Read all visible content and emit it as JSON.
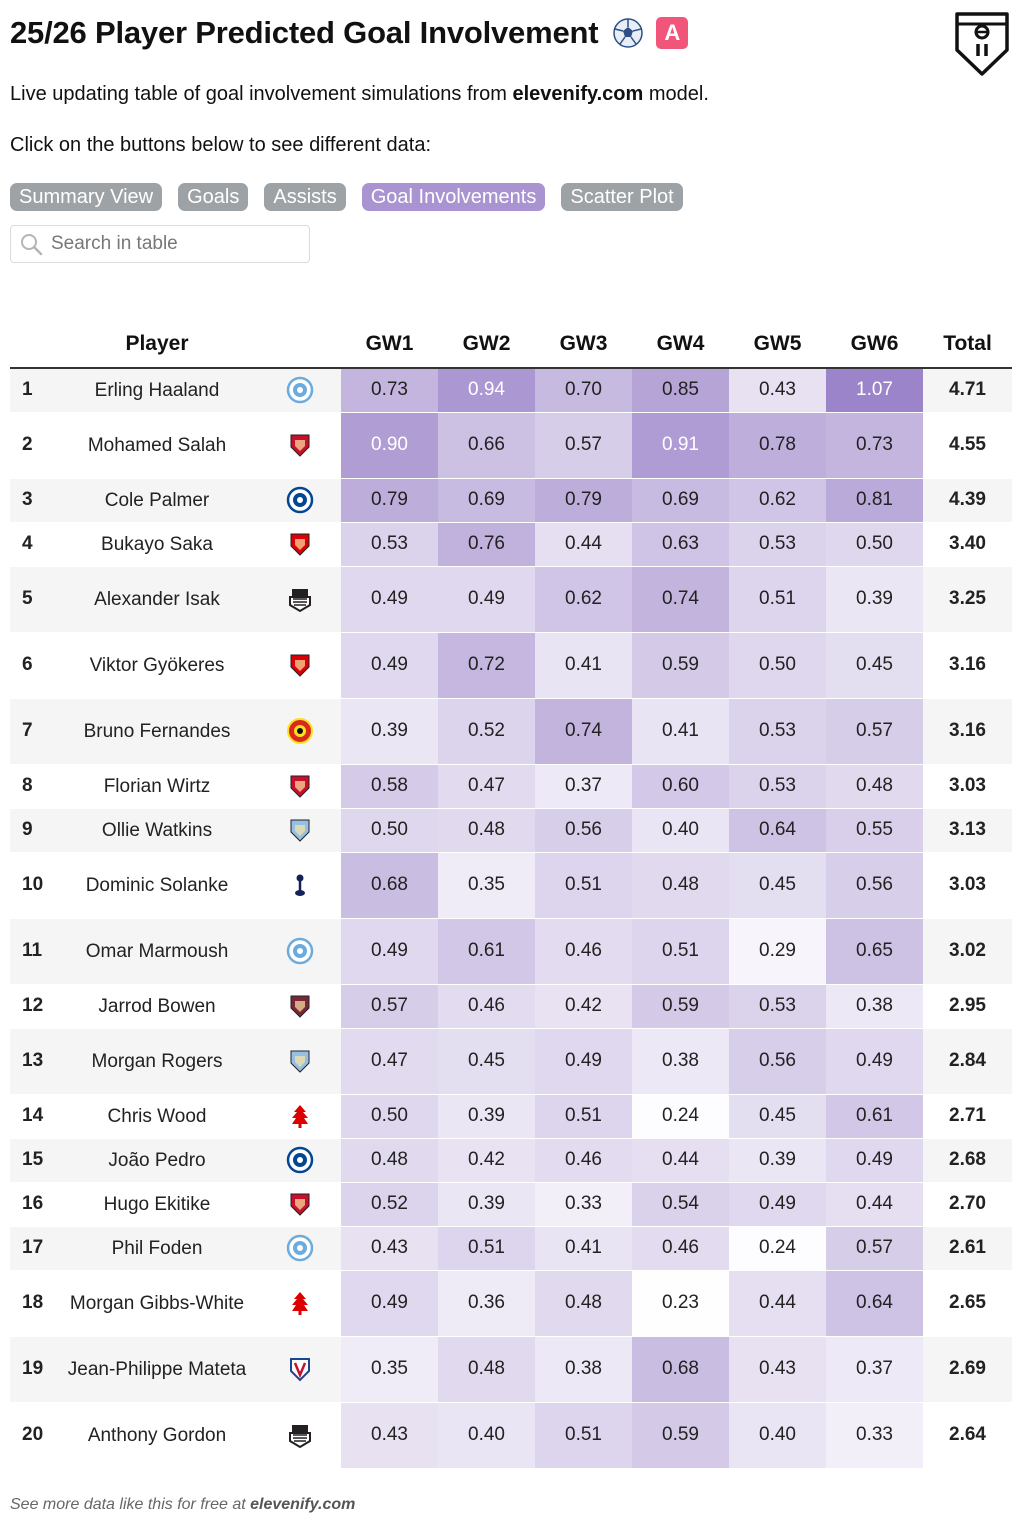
{
  "header": {
    "title": "25/26 Player Predicted Goal Involvement",
    "emoji_a": "A",
    "subtitle_prefix": "Live updating table of goal involvement simulations from ",
    "subtitle_link": "elevenify.com",
    "subtitle_suffix": " model.",
    "instructions": "Click on the buttons below to see different data:"
  },
  "buttons": [
    {
      "label": "Summary View",
      "active": false
    },
    {
      "label": "Goals",
      "active": false
    },
    {
      "label": "Assists",
      "active": false
    },
    {
      "label": "Goal Involvements",
      "active": true
    },
    {
      "label": "Scatter Plot",
      "active": false
    }
  ],
  "search": {
    "placeholder": "Search in table",
    "value": ""
  },
  "table": {
    "columns": [
      "",
      "Player",
      "",
      "GW1",
      "GW2",
      "GW3",
      "GW4",
      "GW5",
      "GW6",
      "Total"
    ],
    "rows": [
      {
        "rank": "1",
        "player": "Erling Haaland",
        "club": "man-city",
        "gw": [
          "0.73",
          "0.94",
          "0.70",
          "0.85",
          "0.43",
          "1.07"
        ],
        "total": "4.71"
      },
      {
        "rank": "2",
        "player": "Mohamed Salah",
        "club": "liverpool",
        "gw": [
          "0.90",
          "0.66",
          "0.57",
          "0.91",
          "0.78",
          "0.73"
        ],
        "total": "4.55"
      },
      {
        "rank": "3",
        "player": "Cole Palmer",
        "club": "chelsea",
        "gw": [
          "0.79",
          "0.69",
          "0.79",
          "0.69",
          "0.62",
          "0.81"
        ],
        "total": "4.39"
      },
      {
        "rank": "4",
        "player": "Bukayo Saka",
        "club": "arsenal",
        "gw": [
          "0.53",
          "0.76",
          "0.44",
          "0.63",
          "0.53",
          "0.50"
        ],
        "total": "3.40"
      },
      {
        "rank": "5",
        "player": "Alexander Isak",
        "club": "newcastle",
        "gw": [
          "0.49",
          "0.49",
          "0.62",
          "0.74",
          "0.51",
          "0.39"
        ],
        "total": "3.25"
      },
      {
        "rank": "6",
        "player": "Viktor Gyökeres",
        "club": "arsenal",
        "gw": [
          "0.49",
          "0.72",
          "0.41",
          "0.59",
          "0.50",
          "0.45"
        ],
        "total": "3.16"
      },
      {
        "rank": "7",
        "player": "Bruno Fernandes",
        "club": "man-utd",
        "gw": [
          "0.39",
          "0.52",
          "0.74",
          "0.41",
          "0.53",
          "0.57"
        ],
        "total": "3.16"
      },
      {
        "rank": "8",
        "player": "Florian Wirtz",
        "club": "liverpool",
        "gw": [
          "0.58",
          "0.47",
          "0.37",
          "0.60",
          "0.53",
          "0.48"
        ],
        "total": "3.03"
      },
      {
        "rank": "9",
        "player": "Ollie Watkins",
        "club": "aston-villa",
        "gw": [
          "0.50",
          "0.48",
          "0.56",
          "0.40",
          "0.64",
          "0.55"
        ],
        "total": "3.13"
      },
      {
        "rank": "10",
        "player": "Dominic Solanke",
        "club": "tottenham",
        "gw": [
          "0.68",
          "0.35",
          "0.51",
          "0.48",
          "0.45",
          "0.56"
        ],
        "total": "3.03"
      },
      {
        "rank": "11",
        "player": "Omar Marmoush",
        "club": "man-city",
        "gw": [
          "0.49",
          "0.61",
          "0.46",
          "0.51",
          "0.29",
          "0.65"
        ],
        "total": "3.02"
      },
      {
        "rank": "12",
        "player": "Jarrod Bowen",
        "club": "west-ham",
        "gw": [
          "0.57",
          "0.46",
          "0.42",
          "0.59",
          "0.53",
          "0.38"
        ],
        "total": "2.95"
      },
      {
        "rank": "13",
        "player": "Morgan Rogers",
        "club": "aston-villa",
        "gw": [
          "0.47",
          "0.45",
          "0.49",
          "0.38",
          "0.56",
          "0.49"
        ],
        "total": "2.84"
      },
      {
        "rank": "14",
        "player": "Chris Wood",
        "club": "forest",
        "gw": [
          "0.50",
          "0.39",
          "0.51",
          "0.24",
          "0.45",
          "0.61"
        ],
        "total": "2.71"
      },
      {
        "rank": "15",
        "player": "João Pedro",
        "club": "chelsea",
        "gw": [
          "0.48",
          "0.42",
          "0.46",
          "0.44",
          "0.39",
          "0.49"
        ],
        "total": "2.68"
      },
      {
        "rank": "16",
        "player": "Hugo Ekitike",
        "club": "liverpool",
        "gw": [
          "0.52",
          "0.39",
          "0.33",
          "0.54",
          "0.49",
          "0.44"
        ],
        "total": "2.70"
      },
      {
        "rank": "17",
        "player": "Phil Foden",
        "club": "man-city",
        "gw": [
          "0.43",
          "0.51",
          "0.41",
          "0.46",
          "0.24",
          "0.57"
        ],
        "total": "2.61"
      },
      {
        "rank": "18",
        "player": "Morgan Gibbs-White",
        "club": "forest",
        "gw": [
          "0.49",
          "0.36",
          "0.48",
          "0.23",
          "0.44",
          "0.64"
        ],
        "total": "2.65"
      },
      {
        "rank": "19",
        "player": "Jean-Philippe Mateta",
        "club": "palace",
        "gw": [
          "0.35",
          "0.48",
          "0.38",
          "0.68",
          "0.43",
          "0.37"
        ],
        "total": "2.69"
      },
      {
        "rank": "20",
        "player": "Anthony Gordon",
        "club": "newcastle",
        "gw": [
          "0.43",
          "0.40",
          "0.51",
          "0.59",
          "0.40",
          "0.33"
        ],
        "total": "2.64"
      }
    ]
  },
  "footer": {
    "prefix": "See more data like this for free at ",
    "link": "elevenify.com"
  },
  "colors": {
    "active_button": "#a993d1",
    "inactive_button": "#9da2a6",
    "heat_low": "#ffffff",
    "heat_high": "#9b83c9",
    "man-city": "#6cabdd",
    "liverpool": "#c8102e",
    "chelsea": "#034694",
    "arsenal": "#db0007",
    "newcastle": "#241f20",
    "man-utd": "#da291c",
    "aston-villa": "#95bfe5",
    "tottenham": "#132257",
    "west-ham": "#7a263a",
    "forest": "#dd0000",
    "palace": "#1b458f"
  }
}
